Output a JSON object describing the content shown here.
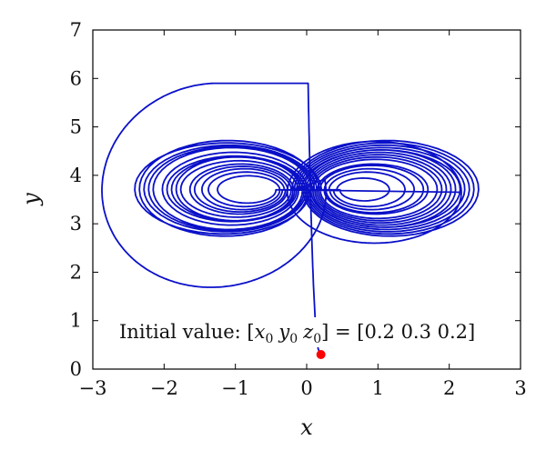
{
  "chart_data": {
    "type": "line",
    "title": "",
    "xlabel": "x",
    "ylabel": "y",
    "xlim": [
      -3,
      3
    ],
    "ylim": [
      0,
      7
    ],
    "xticks": [
      "−3",
      "−2",
      "−1",
      "0",
      "1",
      "2",
      "3"
    ],
    "yticks": [
      "0",
      "1",
      "2",
      "3",
      "4",
      "5",
      "6",
      "7"
    ],
    "grid": false,
    "legend": "none",
    "series": [
      {
        "color": "#0a10c8",
        "description": "phase-space trajectory (x vs y), double-scroll attractor",
        "x": [
          0.2,
          0.17,
          0.1,
          0.05,
          0.04,
          0.02,
          0.0,
          -0.3,
          -0.9,
          -1.7,
          -2.4,
          -2.85,
          -2.9,
          -2.7,
          -2.2,
          -1.4,
          -0.6,
          0.0,
          0.6,
          1.3,
          1.9,
          2.18,
          2.1,
          1.6,
          0.9,
          0.3,
          -0.4,
          -1.3,
          -2.1,
          -2.05,
          -1.3,
          -0.4,
          0.3,
          1.1,
          1.85,
          2.0,
          1.4,
          0.6,
          0.0
        ],
        "y": [
          0.3,
          0.5,
          1.2,
          2.3,
          3.6,
          4.8,
          5.95,
          5.95,
          5.6,
          5.0,
          4.4,
          3.7,
          3.2,
          2.6,
          1.9,
          1.45,
          1.5,
          2.2,
          2.7,
          2.95,
          3.2,
          3.6,
          4.1,
          4.7,
          5.0,
          4.6,
          4.1,
          4.8,
          4.2,
          3.1,
          2.8,
          3.4,
          3.8,
          4.6,
          4.0,
          3.3,
          3.0,
          3.4,
          3.8
        ]
      }
    ],
    "points": [
      {
        "label": "initial point",
        "x": 0.2,
        "y": 0.3,
        "color": "#ff0000"
      }
    ],
    "annotation": {
      "prefix": "Initial value: [",
      "x_var": "x",
      "y_var": "y",
      "z_var": "z",
      "subscript": "0",
      "suffix": "] = [0.2  0.3  0.2]"
    }
  }
}
